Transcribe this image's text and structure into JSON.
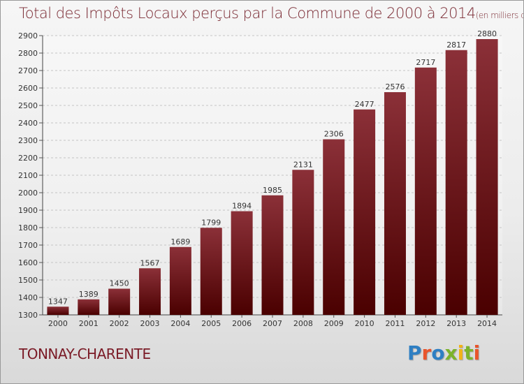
{
  "title": "Total des Impôts Locaux perçus par la Commune de 2000 à 2014",
  "unit": "(en milliers d'€)",
  "place": "TONNAY-CHARENTE",
  "brand": {
    "text": "Proxiti",
    "colors": [
      "#2e7fc3",
      "#e9542b",
      "#2e7fc3",
      "#7cb32b",
      "#f2b318",
      "#7cb32b",
      "#e9542b"
    ]
  },
  "colors": {
    "title": "#7a2a33",
    "bar_top": "#8b3038",
    "bar_bottom": "#4a0000",
    "place": "#7a1a26"
  },
  "chart_data": {
    "type": "bar",
    "title": "Total des Impôts Locaux perçus par la Commune de 2000 à 2014",
    "xlabel": "",
    "ylabel": "",
    "categories": [
      "2000",
      "2001",
      "2002",
      "2003",
      "2004",
      "2005",
      "2006",
      "2007",
      "2008",
      "2009",
      "2010",
      "2011",
      "2012",
      "2013",
      "2014"
    ],
    "values": [
      1347,
      1389,
      1450,
      1567,
      1689,
      1799,
      1894,
      1985,
      2131,
      2306,
      2477,
      2576,
      2717,
      2817,
      2880
    ],
    "ylim": [
      1300,
      2900
    ],
    "yticks": [
      1300,
      1400,
      1500,
      1600,
      1700,
      1800,
      1900,
      2000,
      2100,
      2200,
      2300,
      2400,
      2500,
      2600,
      2700,
      2800,
      2900
    ],
    "grid": true,
    "legend": "none"
  }
}
